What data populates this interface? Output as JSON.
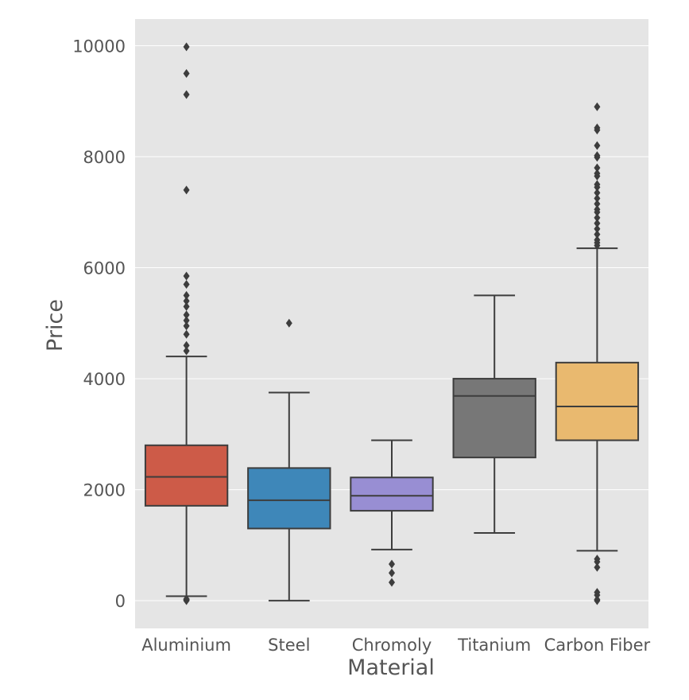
{
  "chart_data": {
    "type": "box",
    "xlabel": "Material",
    "ylabel": "Price",
    "ylim": [
      -500,
      10480
    ],
    "yticks": [
      0,
      2000,
      4000,
      6000,
      8000,
      10000
    ],
    "ytick_labels": [
      "0",
      "2000",
      "4000",
      "6000",
      "8000",
      "10000"
    ],
    "categories": [
      "Aluminium",
      "Steel",
      "Chromoly",
      "Titanium",
      "Carbon Fiber"
    ],
    "grid": true,
    "legend": "none",
    "colors": {
      "background": "#e5e5e5",
      "grid": "#ffffff",
      "box_edge": "#3d3d3d",
      "boxes": [
        "#cd5b48",
        "#3e87b9",
        "#988ed3",
        "#777777",
        "#e9b96f"
      ]
    },
    "boxes": [
      {
        "category": "Aluminium",
        "whisker_low": 80,
        "q1": 1710,
        "median": 2230,
        "q3": 2800,
        "whisker_high": 4400,
        "outliers": [
          0,
          10,
          20,
          30,
          4500,
          4600,
          4800,
          4950,
          5050,
          5150,
          5300,
          5400,
          5500,
          5700,
          5850,
          7400,
          9120,
          9500,
          9980
        ]
      },
      {
        "category": "Steel",
        "whisker_low": 0,
        "q1": 1300,
        "median": 1810,
        "q3": 2390,
        "whisker_high": 3750,
        "outliers": [
          5000
        ]
      },
      {
        "category": "Chromoly",
        "whisker_low": 920,
        "q1": 1620,
        "median": 1890,
        "q3": 2220,
        "whisker_high": 2890,
        "outliers": [
          330,
          500,
          660
        ]
      },
      {
        "category": "Titanium",
        "whisker_low": 1220,
        "q1": 2580,
        "median": 3690,
        "q3": 4000,
        "whisker_high": 5500,
        "outliers": []
      },
      {
        "category": "Carbon Fiber",
        "whisker_low": 900,
        "q1": 2890,
        "median": 3500,
        "q3": 4290,
        "whisker_high": 6350,
        "outliers": [
          0,
          20,
          100,
          150,
          600,
          700,
          750,
          6400,
          6450,
          6500,
          6600,
          6700,
          6800,
          6900,
          7000,
          7050,
          7150,
          7250,
          7350,
          7450,
          7500,
          7650,
          7700,
          7800,
          7990,
          8020,
          8200,
          8480,
          8520,
          8900
        ]
      }
    ]
  }
}
